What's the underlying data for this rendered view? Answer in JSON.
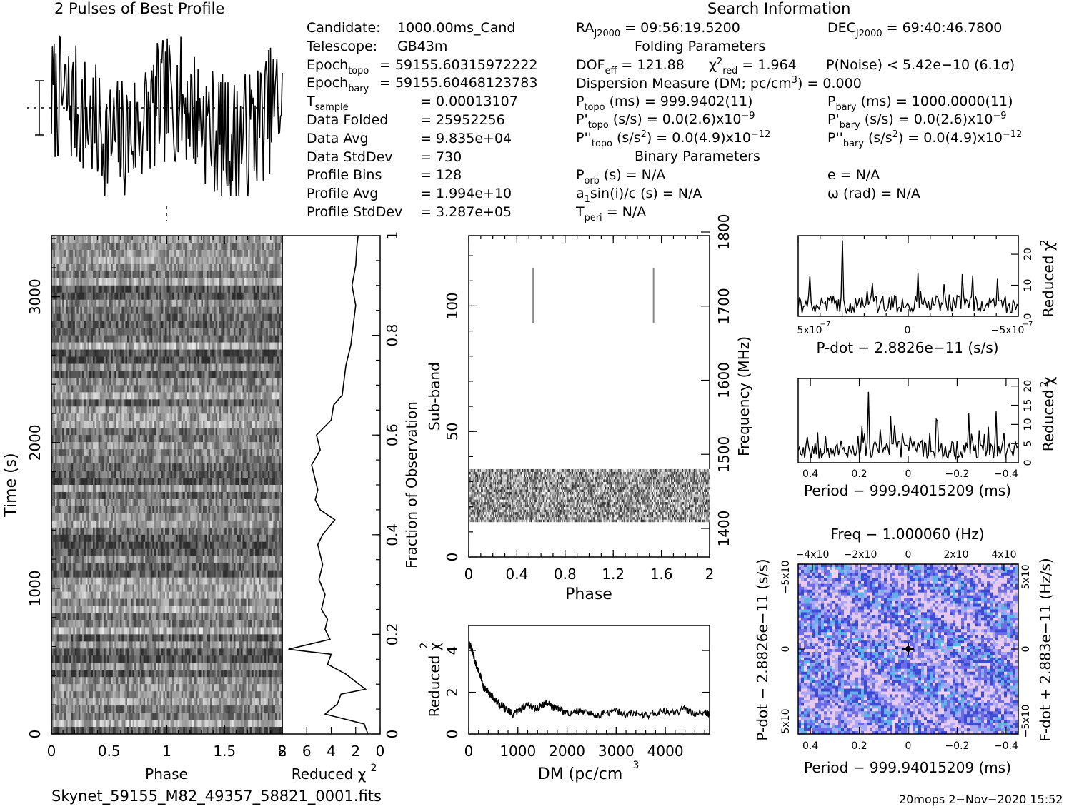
{
  "header": {
    "profile_title": "2 Pulses of Best Profile",
    "search_title": "Search Information",
    "folding_title": "Folding Parameters",
    "binary_title": "Binary Parameters"
  },
  "left_info": [
    {
      "label": "Candidate:",
      "value": "1000.00ms_Cand"
    },
    {
      "label": "Telescope:",
      "value": "GB43m"
    },
    {
      "label": "Epoch",
      "sub": "topo",
      "value": "= 59155.60315972222"
    },
    {
      "label": "Epoch",
      "sub": "bary",
      "value": "= 59155.60468123783"
    },
    {
      "label": "T",
      "sub": "sample",
      "value": "=  0.00013107"
    },
    {
      "label": "Data Folded",
      "value": "=  25952256"
    },
    {
      "label": "Data Avg",
      "value": "=  9.835e+04"
    },
    {
      "label": "Data StdDev",
      "value": "=  730"
    },
    {
      "label": "Profile Bins",
      "value": "=  128"
    },
    {
      "label": "Profile Avg",
      "value": "=  1.994e+10"
    },
    {
      "label": "Profile StdDev",
      "value": "=  3.287e+05"
    }
  ],
  "search": {
    "ra": "= 09:56:19.5200",
    "dec": "= 69:40:46.7800",
    "dof": "= 121.88",
    "chi2": "= 1.964",
    "pnoise": "P(Noise) < 5.42e−10  (6.1σ)",
    "dm_line": "Dispersion Measure (DM; pc/cm",
    "dm_value": ") = 0.000",
    "ptopo": "(ms) =  999.9402(11)",
    "pbary": "(ms) =  1000.0000(11)",
    "pdtopo": "(s/s) = 0.0(2.6)x10",
    "pdtopo_exp": "−9",
    "pdbary": "(s/s) = 0.0(2.6)x10",
    "pdbary_exp": "−9",
    "pddtopo": "(s/s",
    "pddtopo_val": ") = 0.0(4.9)x10",
    "pddtopo_exp": "−12",
    "pddbary": "(s/s",
    "pddbary_val": ") = 0.0(4.9)x10",
    "pddbary_exp": "−12",
    "porb": "(s) = N/A",
    "ecc": "e = N/A",
    "asini": "sin(i)/c (s) = N/A",
    "omega": "ω (rad) = N/A",
    "tperi": "= N/A"
  },
  "footer": {
    "filename": "Skynet_59155_M82_49357_58821_0001.fits",
    "stamp": "20mops   2−Nov−2020 15:52"
  },
  "chart_data": [
    {
      "type": "line",
      "title": "2 Pulses of Best Profile",
      "xlim": [
        0,
        2
      ],
      "note": "profile folded over 2 pulses, 128 bins per pulse"
    },
    {
      "type": "heatmap",
      "xlabel": "Phase",
      "ylabel": "Time (s)",
      "xlim": [
        0,
        2
      ],
      "ylim": [
        0,
        3420
      ],
      "x_ticks": [
        "0",
        "0.5",
        "1",
        "1.5",
        "2"
      ],
      "y_ticks": [
        "0",
        "1000",
        "2000",
        "3000"
      ],
      "right_ticks": [
        "0",
        "0.2",
        "0.4",
        "0.6",
        "0.8",
        "1"
      ],
      "right_label": "Fraction of Observation"
    },
    {
      "type": "line",
      "xlabel": "Reduced χ",
      "x_ticks": [
        "8",
        "6",
        "4",
        "2",
        "0"
      ],
      "xlim": [
        8,
        0
      ],
      "y": [
        0.0,
        0.02,
        0.04,
        0.06,
        0.08,
        0.09,
        0.12,
        0.14,
        0.16,
        0.17,
        0.19,
        0.21,
        0.23,
        0.25,
        0.28,
        0.31,
        0.34,
        0.38,
        0.4,
        0.43,
        0.45,
        0.47,
        0.49,
        0.52,
        0.54,
        0.57,
        0.6,
        0.63,
        0.66,
        0.68,
        0.7,
        0.74,
        0.78,
        0.82,
        0.86,
        0.9,
        0.94,
        0.98,
        1.0
      ],
      "x": [
        1.0,
        1.3,
        4.5,
        3.5,
        3.2,
        1.2,
        2.8,
        4.3,
        4.0,
        7.5,
        4.1,
        4.5,
        4.3,
        4.8,
        4.5,
        5.0,
        4.7,
        5.1,
        4.7,
        3.7,
        4.9,
        5.3,
        5.1,
        5.4,
        5.6,
        4.9,
        5.2,
        4.0,
        3.8,
        3.1,
        3.0,
        2.8,
        2.4,
        2.2,
        2.0,
        2.3,
        2.0,
        1.9,
        1.8
      ]
    },
    {
      "type": "heatmap",
      "xlabel": "Phase",
      "ylabel": "Sub-band",
      "right_label": "Frequency (MHz)",
      "xlim": [
        0,
        2
      ],
      "ylim": [
        0,
        128
      ],
      "x_ticks": [
        "0",
        "0.4",
        "0.8",
        "1.2",
        "1.6",
        "2"
      ],
      "y_ticks": [
        "0",
        "50",
        "100"
      ],
      "right_ticks": [
        "1400",
        "1500",
        "1600",
        "1700",
        "1800"
      ],
      "filled_subbands": [
        14,
        35
      ],
      "marker_phases": [
        0.535,
        1.535
      ],
      "marker_subbands": [
        93,
        115
      ]
    },
    {
      "type": "line",
      "xlabel": "DM (pc/cm",
      "ylabel": "Reduced χ",
      "x_ticks": [
        "0",
        "1000",
        "2000",
        "3000",
        "4000"
      ],
      "y_ticks": [
        "0",
        "2",
        "4"
      ],
      "xlim": [
        0,
        4900
      ],
      "ylim": [
        0,
        5.2
      ],
      "x": [
        0,
        50,
        100,
        150,
        200,
        250,
        300,
        350,
        400,
        450,
        500,
        600,
        700,
        800,
        900,
        1000,
        1100,
        1200,
        1300,
        1400,
        1500,
        1600,
        1700,
        1800,
        1900,
        2000,
        2200,
        2400,
        2600,
        2800,
        3000,
        3200,
        3400,
        3600,
        3800,
        4000,
        4200,
        4400,
        4600,
        4800,
        4900
      ],
      "y": [
        4.4,
        4.1,
        3.7,
        3.3,
        3.0,
        2.7,
        2.2,
        2.1,
        2.0,
        1.9,
        1.7,
        1.5,
        1.3,
        1.1,
        0.9,
        1.1,
        1.3,
        1.4,
        1.3,
        1.2,
        1.4,
        1.5,
        1.3,
        1.2,
        1.1,
        1.0,
        1.1,
        1.0,
        0.9,
        1.0,
        1.1,
        0.9,
        1.0,
        0.9,
        1.0,
        1.1,
        1.0,
        1.2,
        1.0,
        1.1,
        0.9
      ]
    },
    {
      "type": "line",
      "xlabel": "P-dot − 2.8826e−11 (s/s)",
      "ylabel": "Reduced χ",
      "x_ticks": [
        "5x10",
        "0",
        "−5x10"
      ],
      "y_ticks": [
        "0",
        "10",
        "20"
      ],
      "xlim": [
        5e-07,
        -5e-07
      ],
      "ylim": [
        0,
        26
      ],
      "peak_x": 3e-07,
      "peak_y": 24.5
    },
    {
      "type": "line",
      "xlabel": "Period − 999.94015209 (ms)",
      "ylabel": "Reduced χ",
      "x_ticks": [
        "0.4",
        "0.2",
        "0",
        "−0.2",
        "−0.4"
      ],
      "y_ticks": [
        "0",
        "5",
        "10",
        "15",
        "20"
      ],
      "xlim": [
        0.45,
        -0.45
      ],
      "ylim": [
        0,
        22
      ],
      "peak_x": 0.16,
      "peak_y": 18.5
    },
    {
      "type": "heatmap",
      "title": "Freq − 1.000060 (Hz)",
      "xlabel": "Period − 999.94015209 (ms)",
      "ylabel": "P-dot − 2.8826e−11 (s/s)",
      "right_label": "F-dot + 2.883e−11 (Hz/s)",
      "x_ticks": [
        "0.4",
        "0.2",
        "0",
        "−0.2",
        "−0.4"
      ],
      "top_ticks": [
        "−4x10",
        "−2x10",
        "0",
        "2x10",
        "4x10"
      ],
      "left_ticks": [
        "−5x10",
        "0",
        "5x10"
      ],
      "right_ticks": [
        "5x10",
        "0",
        "−5x10"
      ],
      "best_x": 0,
      "best_y": 0
    }
  ]
}
